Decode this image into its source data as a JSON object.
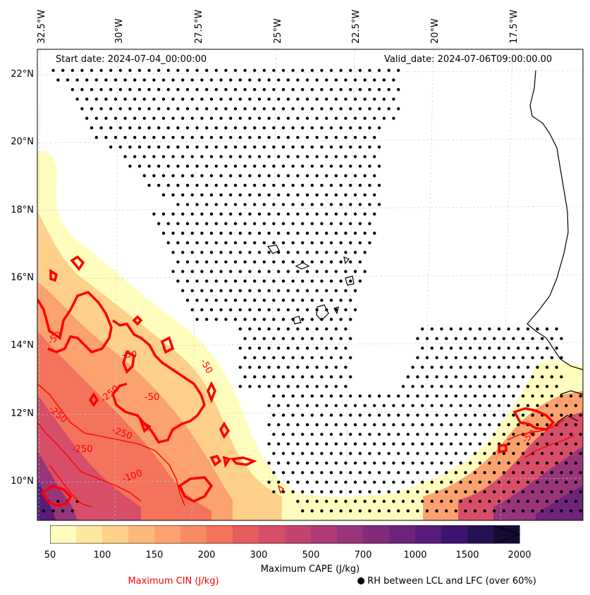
{
  "map": {
    "start_date": "Start date: 2024-07-04_00:00:00",
    "valid_date": "Valid_date: 2024-07-06T09:00:00.00",
    "extent": {
      "lon": [
        -32.5,
        -15.5
      ],
      "lat": [
        9.0,
        22.8
      ]
    },
    "lon_ticks": [
      "32.5°W",
      "30°W",
      "27.5°W",
      "25°W",
      "22.5°W",
      "20°W",
      "17.5°W"
    ],
    "lat_ticks": [
      "22°N",
      "20°N",
      "18°N",
      "16°N",
      "14°N",
      "12°N",
      "10°N"
    ],
    "gridlines": true,
    "cin_contour_labels": [
      "-50",
      "-50",
      "-50",
      "-250",
      "-250",
      "-250",
      "-250",
      "-100",
      "-50",
      "-50"
    ],
    "colors": {
      "cin_contour": "#ff0000",
      "rh_dot": "#000000",
      "coastline": "#000000"
    }
  },
  "colorbar": {
    "label": "Maximum CAPE (J/kg)",
    "ticks": [
      "50",
      "100",
      "150",
      "200",
      "300",
      "500",
      "700",
      "1000",
      "1500",
      "2000"
    ],
    "colors": [
      "#fffdbd",
      "#fee7a1",
      "#fed08a",
      "#fdb97a",
      "#fca26e",
      "#f98b64",
      "#f3735c",
      "#e65d5e",
      "#d64e68",
      "#c34471",
      "#ae3b76",
      "#983479",
      "#822c7b",
      "#6d247b",
      "#571b79",
      "#3e1471",
      "#261052",
      "#150b35"
    ]
  },
  "legend": {
    "cin_label": "Maximum CIN (J/kg)",
    "rh_label": "RH between LCL and LFC (over 60%)"
  }
}
